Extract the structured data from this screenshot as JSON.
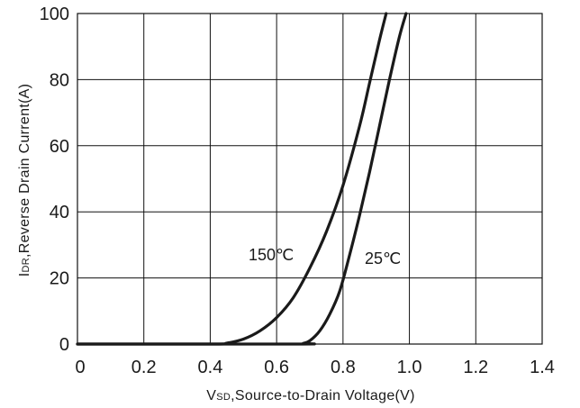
{
  "chart_data": {
    "type": "line",
    "xlabel": {
      "prefix": "V",
      "sub": "SD",
      "text": ",Source-to-Drain Voltage(V)"
    },
    "ylabel": {
      "prefix": "I",
      "sub": "DR",
      "text": ",Reverse Drain Current(A)"
    },
    "xlim": [
      0,
      1.4
    ],
    "ylim": [
      0,
      100
    ],
    "xticks": [
      0,
      0.2,
      0.4,
      0.6,
      0.8,
      1.0,
      1.2,
      1.4
    ],
    "xtick_labels": [
      "0",
      "0.2",
      "0.4",
      "0.6",
      "0.8",
      "1.0",
      "1.2",
      "1.4"
    ],
    "yticks": [
      0,
      20,
      40,
      60,
      80,
      100
    ],
    "ytick_labels": [
      "0",
      "20",
      "40",
      "60",
      "80",
      "100"
    ],
    "grid": true,
    "series": [
      {
        "name": "150℃",
        "x": [
          0,
          0.4,
          0.45,
          0.5,
          0.55,
          0.6,
          0.65,
          0.7,
          0.75,
          0.8,
          0.85,
          0.88,
          0.91,
          0.93
        ],
        "y": [
          0,
          0,
          0.3,
          1.5,
          4,
          8,
          14,
          23,
          34,
          48,
          66,
          79,
          92,
          100
        ]
      },
      {
        "name": "25℃",
        "x": [
          0,
          0.66,
          0.68,
          0.7,
          0.73,
          0.76,
          0.79,
          0.82,
          0.85,
          0.88,
          0.91,
          0.94,
          0.97,
          0.99
        ],
        "y": [
          0,
          0,
          0.2,
          1,
          4,
          9,
          16,
          27,
          39,
          52,
          66,
          80,
          93,
          100
        ]
      }
    ],
    "annotations": [
      "150℃",
      "25℃"
    ]
  }
}
